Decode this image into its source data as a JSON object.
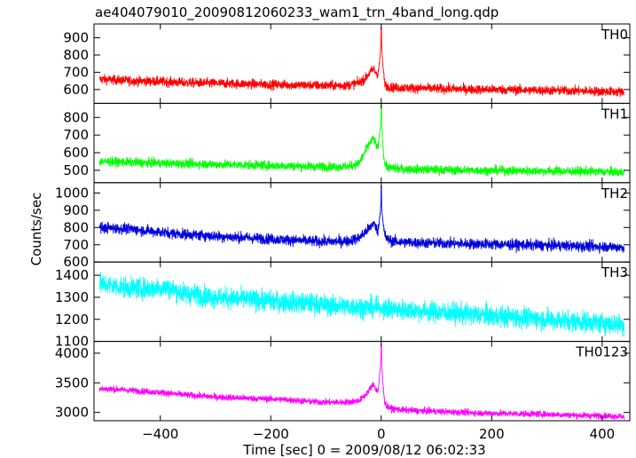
{
  "chart_data": {
    "type": "line",
    "title": "ae404079010_20090812060233_wam1_trn_4band_long.qdp",
    "xlabel": "Time [sec] 0 = 2009/08/12 06:02:33",
    "ylabel": "Counts/sec",
    "xlim": [
      -520,
      450
    ],
    "x_ticks": [
      -400,
      -200,
      0,
      200,
      400
    ],
    "x_tick_labels": [
      "−400",
      "−200",
      "0",
      "200",
      "400"
    ],
    "grid": false,
    "legend": "none",
    "panels": [
      {
        "label": "TH0",
        "color": "#ff0000",
        "ylim": [
          520,
          980
        ],
        "y_ticks": [
          600,
          700,
          800,
          900
        ],
        "series": [
          {
            "x": [
              -510,
              -480,
              -450,
              -420,
              -390,
              -360,
              -330,
              -300,
              -270,
              -240,
              -210,
              -180,
              -150,
              -120,
              -90,
              -60,
              -40,
              -30,
              -20,
              -14,
              -10,
              -6,
              -3,
              0,
              3,
              6,
              10,
              20,
              40,
              60,
              90,
              120,
              150,
              180,
              210,
              240,
              270,
              300,
              330,
              360,
              390,
              420,
              440
            ],
            "y": [
              660,
              655,
              650,
              648,
              645,
              640,
              638,
              636,
              634,
              632,
              630,
              628,
              626,
              624,
              622,
              625,
              640,
              660,
              700,
              720,
              700,
              690,
              760,
              880,
              740,
              640,
              620,
              612,
              610,
              608,
              606,
              604,
              602,
              600,
              600,
              598,
              596,
              595,
              594,
              592,
              590,
              588,
              585
            ],
            "noise": 28,
            "spike": 960
          }
        ]
      },
      {
        "label": "TH1",
        "color": "#00ff00",
        "ylim": [
          430,
          880
        ],
        "y_ticks": [
          500,
          600,
          700,
          800
        ],
        "series": [
          {
            "x": [
              -510,
              -480,
              -450,
              -420,
              -390,
              -360,
              -330,
              -300,
              -270,
              -240,
              -210,
              -180,
              -150,
              -120,
              -90,
              -60,
              -40,
              -30,
              -20,
              -14,
              -10,
              -6,
              -3,
              0,
              3,
              6,
              10,
              20,
              40,
              60,
              90,
              120,
              150,
              180,
              210,
              240,
              270,
              300,
              330,
              360,
              390,
              420,
              440
            ],
            "y": [
              550,
              548,
              545,
              542,
              540,
              538,
              536,
              534,
              532,
              530,
              528,
              526,
              524,
              522,
              520,
              522,
              540,
              600,
              660,
              680,
              650,
              620,
              700,
              820,
              640,
              540,
              520,
              512,
              508,
              506,
              504,
              502,
              500,
              500,
              499,
              498,
              497,
              496,
              495,
              494,
              493,
              492,
              490
            ],
            "noise": 26,
            "spike": 870
          }
        ]
      },
      {
        "label": "TH2",
        "color": "#0000dd",
        "ylim": [
          600,
          1060
        ],
        "y_ticks": [
          600,
          700,
          800,
          900,
          1000
        ],
        "series": [
          {
            "x": [
              -510,
              -480,
              -450,
              -420,
              -390,
              -360,
              -330,
              -300,
              -270,
              -240,
              -210,
              -180,
              -150,
              -120,
              -90,
              -60,
              -40,
              -30,
              -20,
              -14,
              -10,
              -6,
              -3,
              0,
              3,
              6,
              10,
              20,
              40,
              60,
              90,
              120,
              150,
              180,
              210,
              240,
              270,
              300,
              330,
              360,
              390,
              420,
              440
            ],
            "y": [
              800,
              795,
              790,
              780,
              770,
              762,
              756,
              750,
              745,
              740,
              735,
              730,
              725,
              720,
              718,
              722,
              740,
              770,
              800,
              830,
              800,
              780,
              850,
              960,
              830,
              760,
              735,
              720,
              715,
              712,
              710,
              708,
              706,
              705,
              703,
              700,
              698,
              696,
              695,
              692,
              690,
              688,
              685
            ],
            "noise": 32,
            "spike": 1040
          }
        ]
      },
      {
        "label": "TH3",
        "color": "#00ffff",
        "ylim": [
          1100,
          1460
        ],
        "y_ticks": [
          1100,
          1200,
          1300,
          1400
        ],
        "series": [
          {
            "x": [
              -510,
              -480,
              -450,
              -420,
              -390,
              -360,
              -330,
              -300,
              -270,
              -240,
              -210,
              -180,
              -150,
              -120,
              -90,
              -60,
              -30,
              0,
              30,
              60,
              90,
              120,
              150,
              180,
              210,
              240,
              270,
              300,
              330,
              360,
              390,
              420,
              440
            ],
            "y": [
              1360,
              1350,
              1340,
              1340,
              1345,
              1320,
              1310,
              1300,
              1295,
              1290,
              1285,
              1280,
              1275,
              1270,
              1262,
              1258,
              1255,
              1250,
              1245,
              1240,
              1235,
              1230,
              1225,
              1220,
              1215,
              1210,
              1205,
              1200,
              1195,
              1190,
              1185,
              1180,
              1175
            ],
            "noise": 48,
            "spike": null
          }
        ]
      },
      {
        "label": "TH0123",
        "color": "#ff00ff",
        "ylim": [
          2860,
          4200
        ],
        "y_ticks": [
          3000,
          3500,
          4000
        ],
        "series": [
          {
            "x": [
              -510,
              -480,
              -450,
              -420,
              -390,
              -360,
              -330,
              -300,
              -270,
              -240,
              -210,
              -180,
              -150,
              -120,
              -90,
              -60,
              -40,
              -30,
              -20,
              -14,
              -10,
              -6,
              -3,
              0,
              3,
              6,
              10,
              20,
              40,
              60,
              90,
              120,
              150,
              180,
              210,
              240,
              270,
              300,
              330,
              360,
              390,
              420,
              440
            ],
            "y": [
              3400,
              3390,
              3370,
              3350,
              3330,
              3300,
              3280,
              3260,
              3250,
              3240,
              3230,
              3220,
              3200,
              3180,
              3170,
              3175,
              3200,
              3280,
              3400,
              3480,
              3400,
              3350,
              3600,
              3950,
              3500,
              3200,
              3100,
              3060,
              3040,
              3030,
              3020,
              3010,
              3000,
              2990,
              2985,
              2980,
              2975,
              2970,
              2960,
              2950,
              2945,
              2940,
              2930
            ],
            "noise": 55,
            "spike": 4150
          }
        ]
      }
    ]
  }
}
